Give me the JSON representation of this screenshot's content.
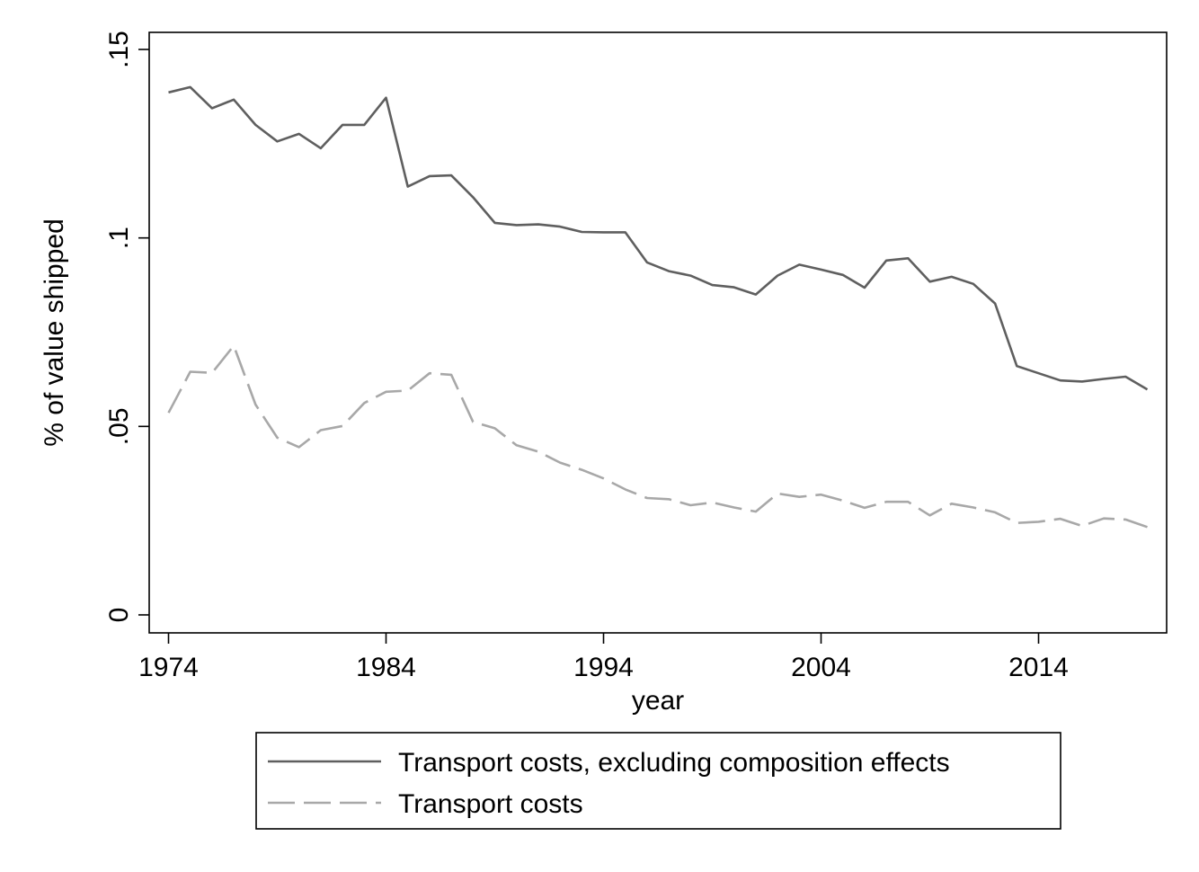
{
  "chart_data": {
    "type": "line",
    "xlabel": "year",
    "ylabel": "% of value shipped",
    "xlim": [
      1973,
      2020
    ],
    "ylim": [
      0,
      0.15
    ],
    "x_ticks": [
      1974,
      1984,
      1994,
      2004,
      2014
    ],
    "x_tick_labels": [
      "1974",
      "1984",
      "1994",
      "2004",
      "2014"
    ],
    "y_ticks": [
      0,
      0.05,
      0.1,
      0.15
    ],
    "y_tick_labels": [
      "0",
      ".05",
      ".1",
      ".15"
    ],
    "grid": false,
    "legend_placement": "bottom",
    "x": [
      1974,
      1975,
      1976,
      1977,
      1978,
      1979,
      1980,
      1981,
      1982,
      1983,
      1984,
      1985,
      1986,
      1987,
      1988,
      1989,
      1990,
      1991,
      1992,
      1993,
      1994,
      1995,
      1996,
      1997,
      1998,
      1999,
      2000,
      2001,
      2002,
      2003,
      2004,
      2005,
      2006,
      2007,
      2008,
      2009,
      2010,
      2011,
      2012,
      2013,
      2014,
      2015,
      2016,
      2017,
      2018,
      2019
    ],
    "series": [
      {
        "name": "Transport costs, excluding composition effects",
        "color": "#5f5f5f",
        "style": "solid",
        "values": [
          0.1386,
          0.14,
          0.1344,
          0.1367,
          0.13,
          0.1256,
          0.1276,
          0.1238,
          0.13,
          0.13,
          0.1372,
          0.1136,
          0.1164,
          0.1166,
          0.1108,
          0.104,
          0.1034,
          0.1036,
          0.103,
          0.1016,
          0.1015,
          0.1015,
          0.0935,
          0.0912,
          0.09,
          0.0875,
          0.0869,
          0.085,
          0.09,
          0.0929,
          0.0916,
          0.0902,
          0.0868,
          0.094,
          0.0946,
          0.0884,
          0.0897,
          0.0878,
          0.0826,
          0.066,
          0.0641,
          0.0622,
          0.0619,
          0.0626,
          0.0632,
          0.0598
        ]
      },
      {
        "name": "Transport costs",
        "color": "#a8a8a8",
        "style": "dashed",
        "values": [
          0.0536,
          0.0645,
          0.0642,
          0.0714,
          0.0558,
          0.047,
          0.0445,
          0.049,
          0.0501,
          0.0562,
          0.0592,
          0.0595,
          0.0641,
          0.0637,
          0.0512,
          0.0495,
          0.045,
          0.0433,
          0.0404,
          0.0385,
          0.0362,
          0.0333,
          0.031,
          0.0307,
          0.0291,
          0.0298,
          0.0285,
          0.0274,
          0.0322,
          0.0313,
          0.0319,
          0.0303,
          0.0284,
          0.03,
          0.03,
          0.0264,
          0.0295,
          0.0285,
          0.0272,
          0.0244,
          0.0247,
          0.0255,
          0.0236,
          0.0256,
          0.0253,
          0.0233
        ]
      }
    ]
  }
}
